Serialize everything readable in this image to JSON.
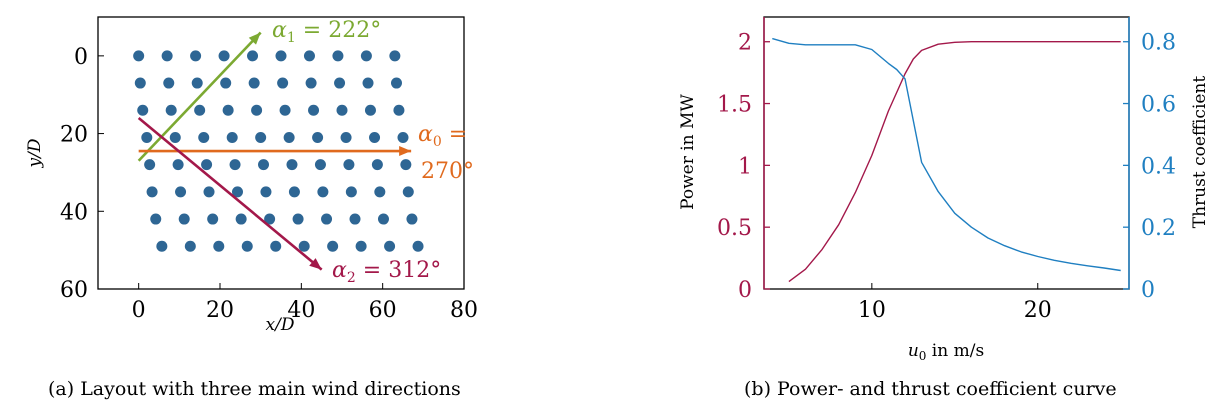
{
  "chart_data": [
    {
      "type": "scatter",
      "title": "",
      "xlabel": "x/D",
      "ylabel": "y/D",
      "xlim": [
        -10,
        80
      ],
      "ylim": [
        60,
        -10
      ],
      "y_inverted": true,
      "xticks": [
        "0",
        "20",
        "40",
        "60",
        "80"
      ],
      "yticks": [
        "0",
        "20",
        "40",
        "60"
      ],
      "caption": "(a) Layout with three main wind directions",
      "turbine_color": "#2e6694",
      "rows": [
        {
          "y": 0,
          "x_start": 0,
          "n": 10
        },
        {
          "y": 7,
          "x_start": 0.4,
          "n": 10
        },
        {
          "y": 14,
          "x_start": 1.0,
          "n": 10
        },
        {
          "y": 21,
          "x_start": 2.0,
          "n": 10
        },
        {
          "y": 28,
          "x_start": 2.7,
          "n": 10
        },
        {
          "y": 35,
          "x_start": 3.3,
          "n": 10
        },
        {
          "y": 42,
          "x_start": 4.2,
          "n": 10
        },
        {
          "y": 49,
          "x_start": 5.7,
          "n": 10
        }
      ],
      "x_spacing": 7.0,
      "wind_directions": [
        {
          "label_html": "α₁ = 222°",
          "label_text": "α_1 = 222°",
          "color": "#7ca932",
          "x0": 0,
          "y0": 27,
          "x1": 30,
          "y1": -6
        },
        {
          "label_html": "α₀ = 270°",
          "label_text": "α_0 = 270°",
          "color": "#e06a1e",
          "x0": 0,
          "y0": 24.5,
          "x1": 67,
          "y1": 24.5
        },
        {
          "label_html": "α₂ = 312°",
          "label_text": "α_2 = 312°",
          "color": "#a3184a",
          "x0": 0,
          "y0": 16,
          "x1": 45,
          "y1": 55
        }
      ],
      "labels": {
        "a1_main": "α",
        "a1_sub": "1",
        "a1_rest": " = 222°",
        "a0_main": "α",
        "a0_sub": "0",
        "a0_rest": " =",
        "a0_line2": "270°",
        "a2_main": "α",
        "a2_sub": "2",
        "a2_rest": " = 312°"
      }
    },
    {
      "type": "line",
      "title": "",
      "xlabel": "u₀ in m/s",
      "xlabel_main": "u",
      "xlabel_sub": "0",
      "xlabel_rest": " in m/s",
      "xlim": [
        3.5,
        25.5
      ],
      "xticks": [
        "10",
        "20"
      ],
      "caption": "(b) Power- and thrust coefficient curve",
      "left_axis": {
        "label": "Power in MW",
        "color": "#a3184a",
        "ylim": [
          0,
          2.2
        ],
        "ticks": [
          "0",
          "0.5",
          "1",
          "1.5",
          "2"
        ]
      },
      "right_axis": {
        "label": "Thrust coefficient",
        "color": "#1f7fc1",
        "ylim": [
          0,
          0.88
        ],
        "ticks": [
          "0",
          "0.2",
          "0.4",
          "0.6",
          "0.8"
        ]
      },
      "series": [
        {
          "axis": "left",
          "color": "#a3184a",
          "x": [
            5,
            6,
            7,
            8,
            9,
            10,
            11,
            12,
            12.5,
            13,
            14,
            15,
            16,
            18,
            20,
            25
          ],
          "y": [
            0.06,
            0.16,
            0.32,
            0.52,
            0.78,
            1.08,
            1.44,
            1.74,
            1.86,
            1.93,
            1.98,
            1.995,
            2.0,
            2.0,
            2.0,
            2.0
          ]
        },
        {
          "axis": "right",
          "color": "#1f7fc1",
          "x": [
            4,
            5,
            6,
            7,
            8,
            9,
            10,
            11,
            11.5,
            12,
            13,
            14,
            15,
            16,
            17,
            18,
            19,
            20,
            21,
            22,
            23,
            24,
            25
          ],
          "y": [
            0.81,
            0.795,
            0.79,
            0.79,
            0.79,
            0.79,
            0.775,
            0.73,
            0.71,
            0.68,
            0.41,
            0.315,
            0.245,
            0.2,
            0.165,
            0.14,
            0.12,
            0.105,
            0.093,
            0.083,
            0.075,
            0.068,
            0.06
          ]
        }
      ]
    }
  ]
}
